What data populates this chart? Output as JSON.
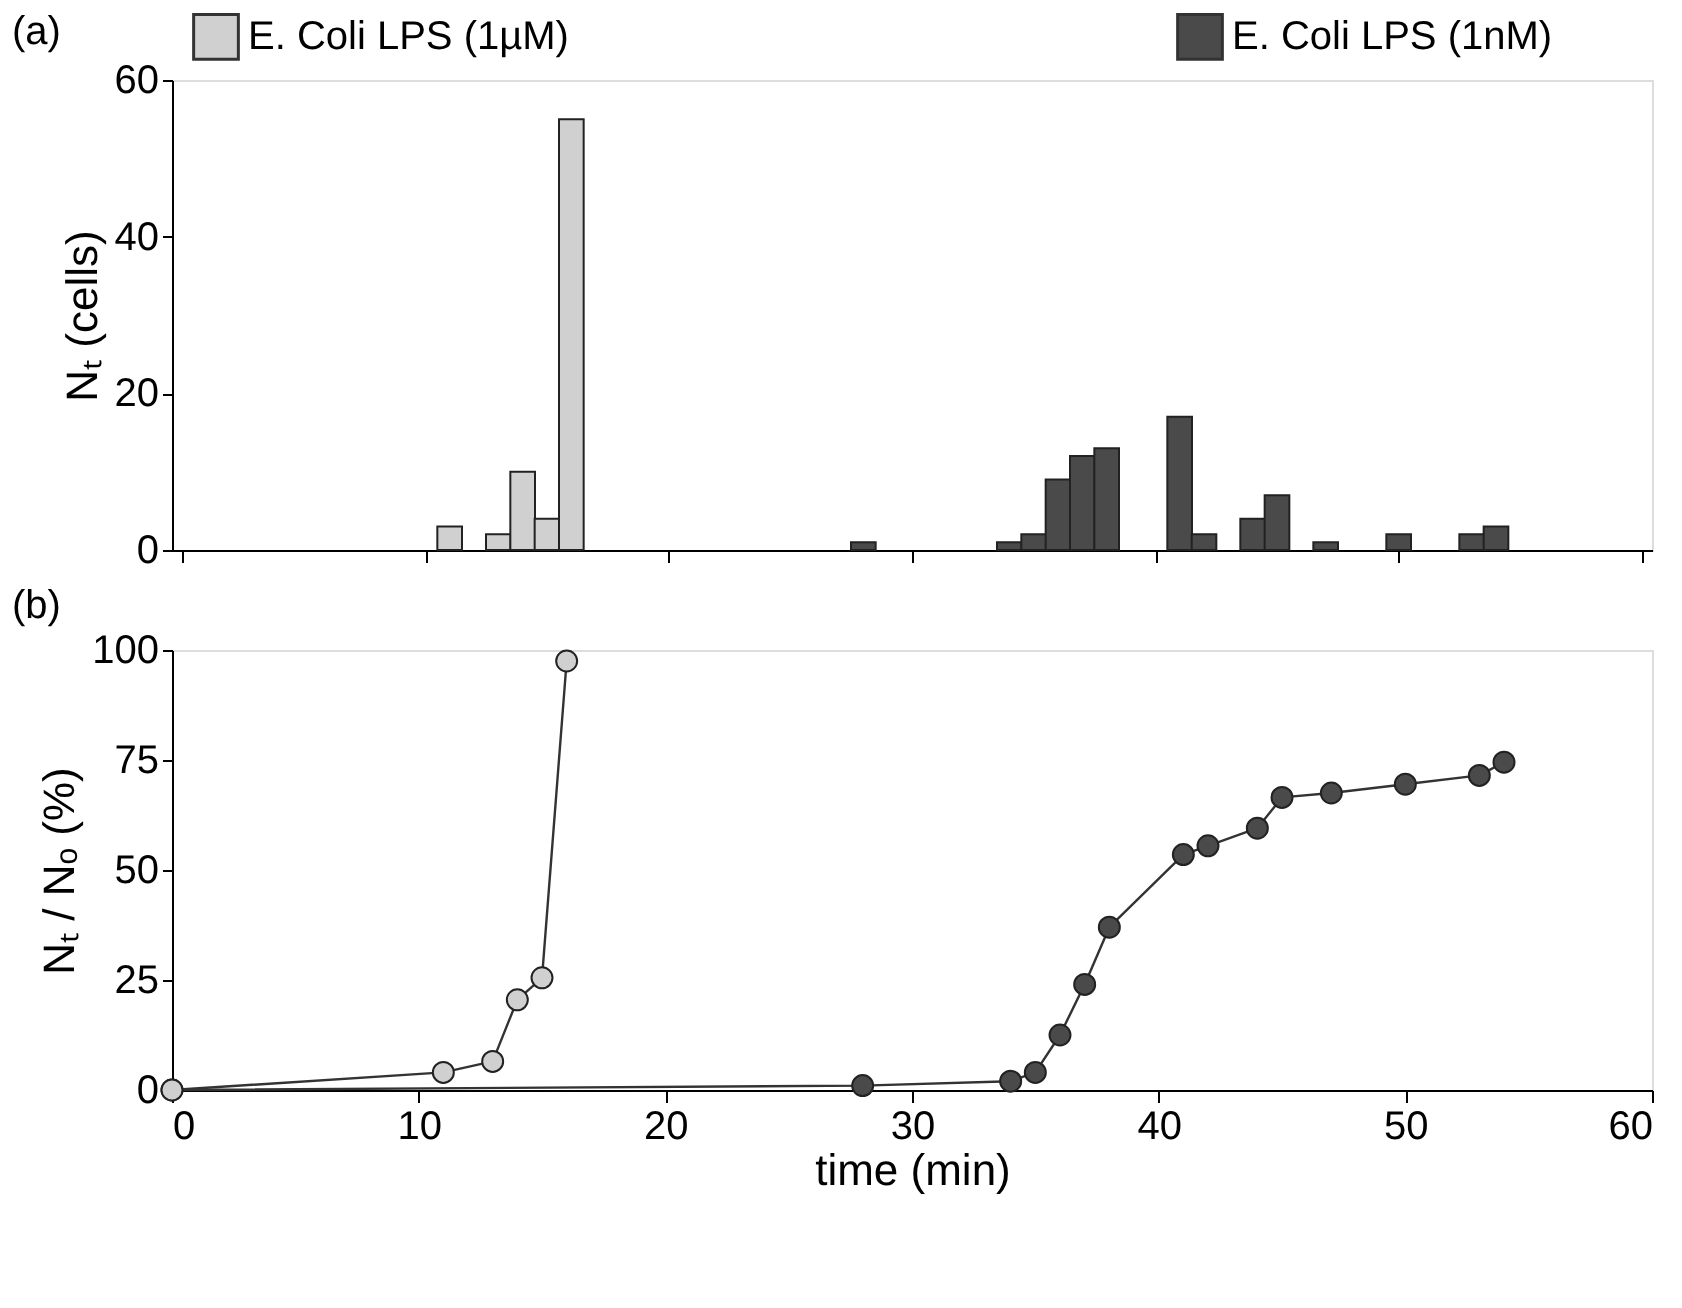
{
  "chart_data": [
    {
      "type": "bar",
      "title": "(a)",
      "ylabel": "Nₜ (cells)",
      "xlim": [
        0,
        60
      ],
      "xticks": [
        0,
        10,
        20,
        30,
        40,
        50,
        60
      ],
      "ylim": [
        0,
        60
      ],
      "yticks": [
        0,
        20,
        40,
        60
      ],
      "tick_labels": "y",
      "grid": false,
      "legend": "top",
      "series": [
        {
          "name": "E. Coli LPS (1µM)",
          "color": "#d0d0d0",
          "x": [
            11,
            13,
            14,
            15,
            16
          ],
          "values": [
            3,
            2,
            10,
            4,
            55
          ]
        },
        {
          "name": "E. Coli LPS (1nM)",
          "color": "#4a4a4a",
          "x": [
            28,
            34,
            35,
            36,
            37,
            38,
            41,
            42,
            44,
            45,
            47,
            50,
            53,
            54
          ],
          "values": [
            1,
            1,
            2,
            9,
            12,
            13,
            17,
            2,
            4,
            7,
            1,
            2,
            2,
            3
          ]
        }
      ]
    },
    {
      "type": "line",
      "title": "(b)",
      "xlabel": "time (min)",
      "ylabel": "Nₜ / Nₒ (%)",
      "xlim": [
        0,
        60
      ],
      "xticks": [
        0,
        10,
        20,
        30,
        40,
        50,
        60
      ],
      "ylim": [
        0,
        100
      ],
      "yticks": [
        0,
        25,
        50,
        75,
        100
      ],
      "grid": false,
      "legend": false,
      "marker": "circle",
      "series": [
        {
          "color": "#4a4a4a",
          "x": [
            0,
            28,
            34,
            35,
            36,
            37,
            38,
            41,
            42,
            44,
            45,
            47,
            50,
            53,
            54
          ],
          "values": [
            0,
            1,
            2,
            4,
            12.5,
            24,
            37,
            53.5,
            55.5,
            59.5,
            66.5,
            67.5,
            69.5,
            71.5,
            74.5
          ]
        },
        {
          "color": "#d0d0d0",
          "x": [
            0,
            11,
            13,
            14,
            15,
            16
          ],
          "values": [
            0,
            4,
            6.5,
            20.5,
            25.5,
            97.5
          ]
        }
      ]
    }
  ]
}
